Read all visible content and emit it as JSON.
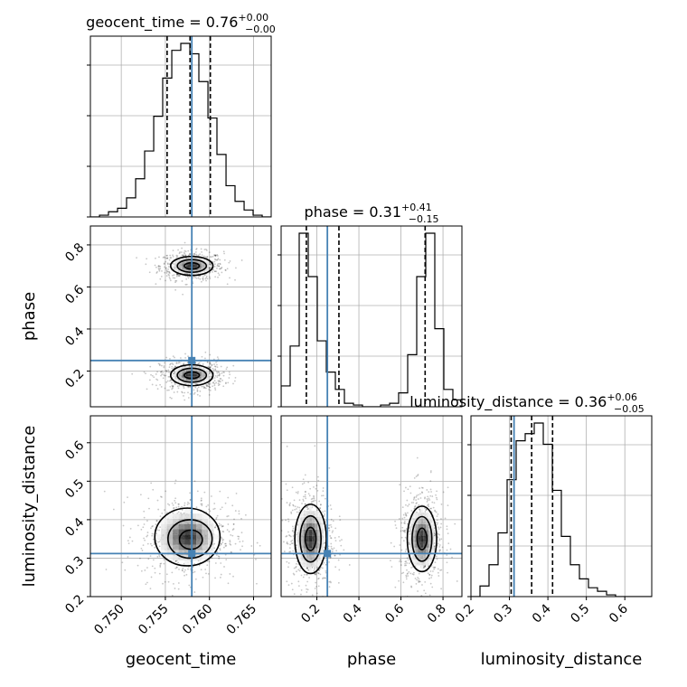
{
  "chart_data": {
    "type": "corner",
    "parameters": [
      "geocent_time",
      "phase",
      "luminosity_distance"
    ],
    "axis_labels": {
      "geocent_time": "geocent_time",
      "phase": "phase",
      "luminosity_distance": "luminosity_distance"
    },
    "ranges": {
      "geocent_time": [
        0.7465,
        0.767
      ],
      "phase": [
        0.03,
        0.89
      ],
      "luminosity_distance": [
        0.2,
        0.67
      ]
    },
    "ticks": {
      "geocent_time": [
        0.75,
        0.755,
        0.76,
        0.765
      ],
      "phase": [
        0.2,
        0.4,
        0.6,
        0.8
      ],
      "luminosity_distance": [
        0.2,
        0.3,
        0.4,
        0.5,
        0.6
      ]
    },
    "tick_labels": {
      "geocent_time": [
        "0.750",
        "0.755",
        "0.760",
        "0.765"
      ],
      "phase": [
        "0.2",
        "0.4",
        "0.6",
        "0.8"
      ],
      "luminosity_distance": [
        "0.2",
        "0.3",
        "0.4",
        "0.5",
        "0.6"
      ]
    },
    "truths": {
      "geocent_time": 0.758,
      "phase": 0.25,
      "luminosity_distance": 0.312
    },
    "truth_color": "#4682b4",
    "quantiles": {
      "geocent_time": [
        0.7552,
        0.7578,
        0.7601
      ],
      "phase": [
        0.15,
        0.305,
        0.715
      ],
      "luminosity_distance": [
        0.3045,
        0.3578,
        0.4122
      ]
    },
    "titles": {
      "geocent_time": {
        "name": "geocent_time",
        "median": "0.76",
        "plus": "+0.00",
        "minus": "−0.00"
      },
      "phase": {
        "name": "phase",
        "median": "0.31",
        "plus": "+0.41",
        "minus": "−0.15"
      },
      "luminosity_distance": {
        "name": "luminosity_distance",
        "median": "0.36",
        "plus": "+0.06",
        "minus": "−0.05"
      }
    },
    "histograms": {
      "geocent_time": {
        "edges": [
          0.7465,
          0.74753,
          0.74855,
          0.74958,
          0.7506,
          0.75163,
          0.75265,
          0.75368,
          0.7547,
          0.75573,
          0.75675,
          0.75778,
          0.7588,
          0.75983,
          0.76085,
          0.76188,
          0.7629,
          0.76393,
          0.76495,
          0.76598,
          0.767
        ],
        "counts": [
          0,
          1,
          3,
          5,
          11,
          22,
          38,
          58,
          80,
          96,
          100,
          94,
          78,
          57,
          36,
          18,
          9,
          4,
          1,
          0
        ]
      },
      "phase": {
        "edges": [
          0.03,
          0.073,
          0.116,
          0.159,
          0.202,
          0.245,
          0.288,
          0.331,
          0.374,
          0.417,
          0.46,
          0.503,
          0.546,
          0.589,
          0.632,
          0.675,
          0.718,
          0.761,
          0.804,
          0.847,
          0.89
        ],
        "counts": [
          12,
          35,
          100,
          75,
          38,
          20,
          10,
          2,
          1,
          0,
          0,
          1,
          2,
          8,
          30,
          75,
          100,
          45,
          10,
          4
        ]
      },
      "luminosity_distance": {
        "edges": [
          0.2,
          0.2235,
          0.247,
          0.2705,
          0.294,
          0.3175,
          0.341,
          0.3645,
          0.388,
          0.4115,
          0.435,
          0.4585,
          0.482,
          0.5055,
          0.529,
          0.5525,
          0.576,
          0.5995,
          0.623,
          0.6465,
          0.67
        ],
        "counts": [
          0,
          6,
          18,
          36,
          66,
          88,
          92,
          98,
          86,
          60,
          34,
          18,
          10,
          5,
          3,
          1,
          0,
          0,
          0,
          0
        ]
      }
    },
    "contours": {
      "phase_vs_geocent_time": [
        {
          "cx": 0.758,
          "cy": 0.7,
          "rx": 0.0024,
          "ry": 0.045
        },
        {
          "cx": 0.758,
          "cy": 0.7,
          "rx": 0.00165,
          "ry": 0.03
        },
        {
          "cx": 0.758,
          "cy": 0.7,
          "rx": 0.00085,
          "ry": 0.015
        },
        {
          "cx": 0.758,
          "cy": 0.18,
          "rx": 0.0024,
          "ry": 0.05
        },
        {
          "cx": 0.758,
          "cy": 0.18,
          "rx": 0.00165,
          "ry": 0.033
        },
        {
          "cx": 0.758,
          "cy": 0.18,
          "rx": 0.00085,
          "ry": 0.016
        }
      ],
      "luminosity_distance_vs_geocent_time": [
        {
          "cx": 0.7575,
          "cy": 0.355,
          "rx": 0.0037,
          "ry": 0.075
        },
        {
          "cx": 0.7578,
          "cy": 0.35,
          "rx": 0.0025,
          "ry": 0.05
        },
        {
          "cx": 0.7579,
          "cy": 0.348,
          "rx": 0.0013,
          "ry": 0.025
        }
      ],
      "luminosity_distance_vs_phase": [
        {
          "cx": 0.17,
          "cy": 0.35,
          "rx": 0.075,
          "ry": 0.09
        },
        {
          "cx": 0.17,
          "cy": 0.35,
          "rx": 0.05,
          "ry": 0.06
        },
        {
          "cx": 0.17,
          "cy": 0.35,
          "rx": 0.025,
          "ry": 0.03
        },
        {
          "cx": 0.7,
          "cy": 0.35,
          "rx": 0.07,
          "ry": 0.085
        },
        {
          "cx": 0.7,
          "cy": 0.35,
          "rx": 0.047,
          "ry": 0.058
        },
        {
          "cx": 0.7,
          "cy": 0.35,
          "rx": 0.023,
          "ry": 0.028
        }
      ]
    },
    "grid": true
  }
}
